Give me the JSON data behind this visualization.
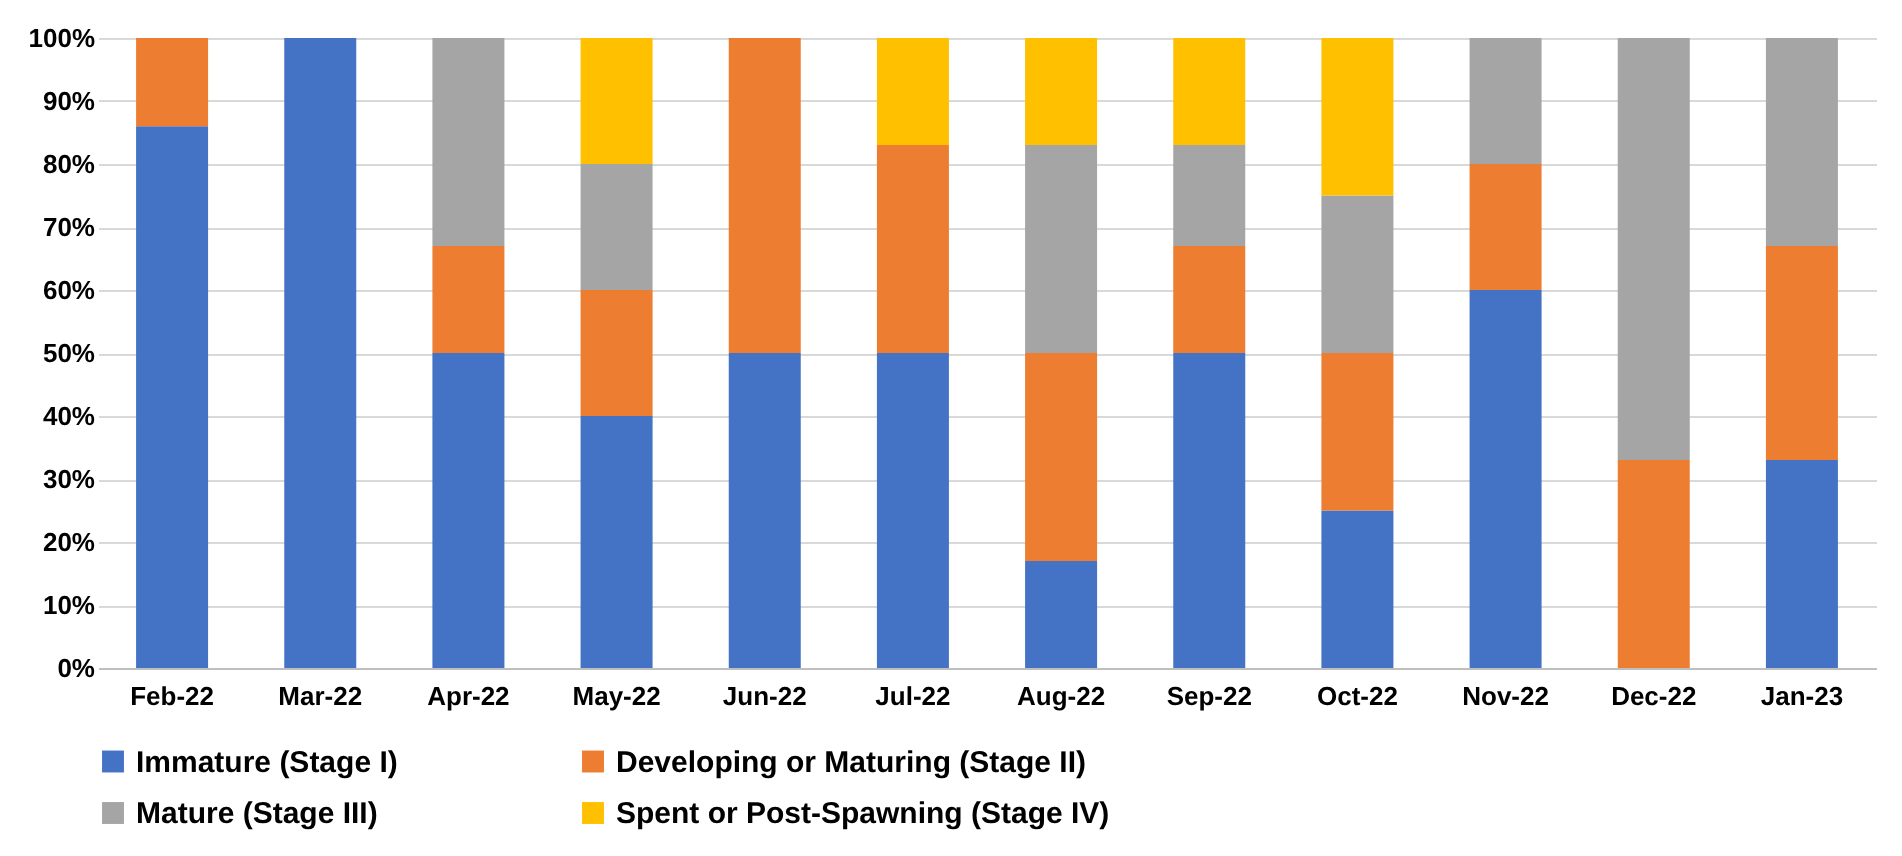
{
  "chart_data": {
    "type": "bar",
    "stacked": true,
    "categories": [
      "Feb-22",
      "Mar-22",
      "Apr-22",
      "May-22",
      "Jun-22",
      "Jul-22",
      "Aug-22",
      "Sep-22",
      "Oct-22",
      "Nov-22",
      "Dec-22",
      "Jan-23"
    ],
    "series": [
      {
        "name": "Immature (Stage I)",
        "color": "#4472c4",
        "values": [
          86,
          100,
          50,
          40,
          50,
          50,
          17,
          50,
          25,
          60,
          0,
          33
        ]
      },
      {
        "name": "Developing or Maturing (Stage II)",
        "color": "#ed7d31",
        "values": [
          14,
          0,
          17,
          20,
          50,
          33,
          33,
          17,
          25,
          20,
          33,
          34
        ]
      },
      {
        "name": "Mature (Stage III)",
        "color": "#a5a5a5",
        "values": [
          0,
          0,
          33,
          20,
          0,
          0,
          33,
          16,
          25,
          20,
          67,
          33
        ]
      },
      {
        "name": "Spent or Post-Spawning (Stage IV)",
        "color": "#ffc000",
        "values": [
          0,
          0,
          0,
          20,
          0,
          17,
          17,
          17,
          25,
          0,
          0,
          0
        ]
      }
    ],
    "ylim": [
      0,
      100
    ],
    "yticks": [
      {
        "value": 0,
        "label": "0%"
      },
      {
        "value": 10,
        "label": "10%"
      },
      {
        "value": 20,
        "label": "20%"
      },
      {
        "value": 30,
        "label": "30%"
      },
      {
        "value": 40,
        "label": "40%"
      },
      {
        "value": 50,
        "label": "50%"
      },
      {
        "value": 60,
        "label": "60%"
      },
      {
        "value": 70,
        "label": "70%"
      },
      {
        "value": 80,
        "label": "80%"
      },
      {
        "value": 90,
        "label": "90%"
      },
      {
        "value": 100,
        "label": "100%"
      }
    ],
    "grid": "y",
    "legend": "bottom"
  }
}
